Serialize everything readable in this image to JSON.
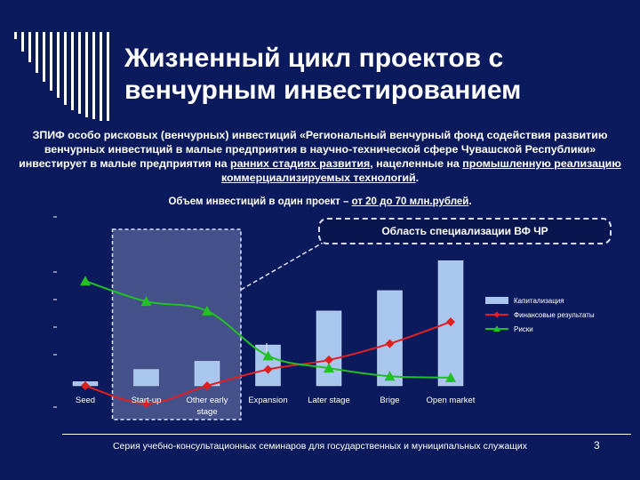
{
  "slide": {
    "title_line1": "Жизненный цикл проектов с",
    "title_line2": "венчурным инвестированием",
    "body": {
      "p1": "ЗПИФ особо рисковых (венчурных) инвестиций «Региональный венчурный фонд содействия развитию венчурных инвестиций в малые предприятия в научно-технической сфере Чувашской Республики» инвестирует в малые предприятия на ",
      "u1": "ранних стадиях развития",
      "p2": ", нацеленные на ",
      "u2": "промышленную реализацию коммерциализируемых технологий",
      "p3": "."
    },
    "volume": {
      "prefix": "Объем инвестиций в один проект – ",
      "highlight": "от 20 до 70 млн.рублей",
      "suffix": "."
    },
    "specialization_label": "Область специализации ВФ ЧР",
    "footer": "Серия учебно-консультационных семинаров для государственных и муниципальных служащих",
    "page_number": "3"
  },
  "colors": {
    "background": "#0b1a5c",
    "bar": "#a9c6ef",
    "finance_line": "#e02020",
    "risk_line": "#22c022"
  },
  "chart_data": {
    "type": "bar",
    "categories": [
      "Seed",
      "Start-up",
      "Other early stage",
      "Expansion",
      "Later stage",
      "Brige",
      "Open market"
    ],
    "category_lines": [
      [
        "Seed"
      ],
      [
        "Start-up"
      ],
      [
        "Other early",
        "stage"
      ],
      [
        "Expansion"
      ],
      [
        "Later stage"
      ],
      [
        "Brige"
      ],
      [
        "Open market"
      ]
    ],
    "ylim": [
      0,
      100
    ],
    "series": [
      {
        "name": "Капитализация",
        "kind": "bar",
        "color": "#a9c6ef",
        "values": [
          3,
          12,
          18,
          30,
          55,
          70,
          92
        ]
      },
      {
        "name": "Финансовые результаты",
        "kind": "line",
        "marker": "diamond",
        "color": "#e02020",
        "values": [
          0,
          -13,
          0,
          12,
          19,
          31,
          47
        ]
      },
      {
        "name": "Риски",
        "kind": "line",
        "marker": "triangle",
        "color": "#22c022",
        "values": [
          77,
          62,
          55,
          22,
          13,
          7,
          6
        ]
      }
    ],
    "highlight_categories": [
      "Start-up",
      "Other early stage"
    ],
    "legend_position": "right"
  }
}
